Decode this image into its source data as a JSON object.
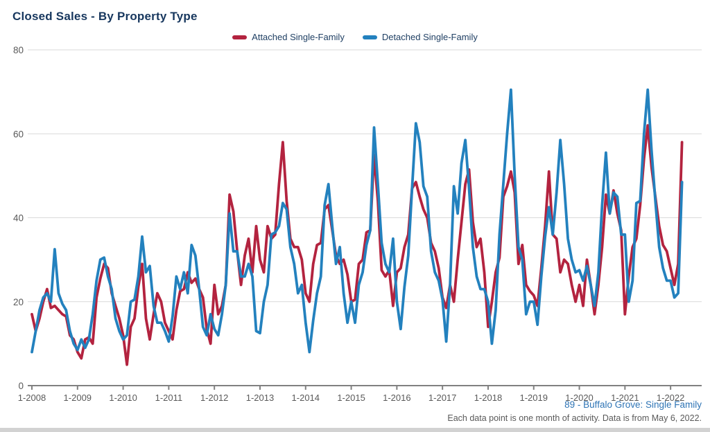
{
  "header": {
    "title": "Closed Sales - By Property Type"
  },
  "legend": {
    "items": [
      {
        "label": "Attached Single-Family",
        "color": "#B3233F"
      },
      {
        "label": "Detached Single-Family",
        "color": "#2381BE"
      }
    ]
  },
  "footer": {
    "source_label": "89 - Buffalo Grove: Single Family",
    "note": "Each data point is one month of activity. Data is from May 6, 2022."
  },
  "colors": {
    "title_text": "#17375E",
    "legend_text": "#1F3F63",
    "grid_line": "#D9D9D9",
    "axis_line": "#808080",
    "axis_label": "#595959",
    "attached_line": "#B3233F",
    "detached_line": "#2381BE",
    "source_text": "#2E74B5"
  },
  "chart_data": {
    "type": "line",
    "title": "Closed Sales - By Property Type",
    "xlabel": "",
    "ylabel": "",
    "x_start": "1-2008",
    "x_interval": "1 month",
    "x_tick_labels": [
      "1-2008",
      "1-2009",
      "1-2010",
      "1-2011",
      "1-2012",
      "1-2013",
      "1-2014",
      "1-2015",
      "1-2016",
      "1-2017",
      "1-2018",
      "1-2019",
      "1-2020",
      "1-2021",
      "1-2022"
    ],
    "y_ticks": [
      0,
      20,
      40,
      60,
      80
    ],
    "ylim": [
      0,
      80
    ],
    "grid": "horizontal",
    "legend_position": "top-center",
    "series": [
      {
        "name": "Attached Single-Family",
        "key": "attached-single-family",
        "color": "#B3233F",
        "values": [
          17,
          13,
          16,
          20,
          23,
          18.5,
          19,
          18,
          17,
          16.5,
          12,
          11,
          8,
          6.5,
          11,
          11.5,
          10,
          21,
          25.5,
          29,
          28,
          22,
          19,
          16,
          12,
          5,
          14,
          16,
          23.5,
          29,
          16,
          11,
          17,
          22,
          20,
          15,
          13,
          11,
          18,
          22.5,
          23,
          27,
          24.5,
          25.5,
          23,
          21,
          13.5,
          10,
          24,
          17,
          19,
          24,
          45.5,
          41.5,
          32,
          24,
          31,
          35,
          27,
          38,
          30,
          27,
          38,
          35,
          36,
          48,
          58,
          44,
          35,
          33,
          33,
          30,
          22,
          20,
          29,
          33.5,
          34,
          42,
          43,
          37,
          31,
          29,
          30,
          26.5,
          20,
          20.5,
          29,
          30,
          36.5,
          37,
          55,
          44,
          27.5,
          26,
          27.5,
          19,
          27,
          28,
          33,
          36,
          47,
          48.5,
          45,
          42,
          40,
          34,
          32,
          28,
          21,
          18.5,
          24,
          20,
          30,
          39,
          48,
          51.5,
          39,
          33,
          35,
          27,
          14,
          20,
          27,
          30.5,
          45,
          47.5,
          51,
          46,
          29,
          33.5,
          24,
          22.5,
          21.5,
          19,
          28,
          38,
          51,
          36,
          35,
          27,
          30,
          29,
          24,
          20,
          24,
          19,
          30,
          24,
          17,
          24,
          33,
          45.5,
          41,
          46.5,
          41,
          37,
          17,
          26,
          33,
          35,
          43,
          54,
          62,
          52,
          45,
          38,
          33.5,
          32,
          28,
          24,
          29,
          58
        ]
      },
      {
        "name": "Detached Single-Family",
        "key": "detached-single-family",
        "color": "#2381BE",
        "values": [
          8,
          13,
          18,
          21,
          22,
          20,
          32.5,
          22,
          19.5,
          18,
          13,
          10,
          8.5,
          11,
          9,
          11,
          17,
          25,
          30,
          30.5,
          26,
          23,
          16,
          13,
          11,
          12,
          20,
          20.5,
          26,
          35.5,
          27,
          28.5,
          19,
          15,
          15,
          13,
          10.5,
          16.5,
          26,
          23,
          27,
          22,
          33.5,
          31,
          23,
          14,
          12,
          17,
          13.5,
          12,
          17,
          24,
          41,
          32,
          32,
          26,
          26,
          29,
          26,
          13,
          12.5,
          20,
          24,
          36,
          36.5,
          38,
          43.5,
          42,
          33,
          29,
          22,
          24,
          15,
          8,
          15.5,
          22,
          26,
          43,
          48,
          38,
          29,
          33,
          22,
          15,
          20,
          15,
          24,
          27,
          33.5,
          37,
          61.5,
          48,
          34,
          29,
          27,
          35,
          20,
          13.5,
          23.5,
          31,
          47,
          62.5,
          58,
          47.5,
          45,
          32,
          27,
          25,
          20.5,
          10.5,
          24,
          47.5,
          41,
          53,
          58.5,
          47,
          33,
          26,
          23,
          23,
          20,
          10,
          18,
          36,
          48,
          60,
          70.5,
          50,
          33,
          30,
          17,
          20,
          20,
          14.5,
          26,
          35.5,
          42.5,
          36,
          46,
          58.5,
          48,
          35,
          30,
          27,
          27.5,
          25,
          28.5,
          24,
          19,
          27,
          43,
          55.5,
          41,
          46,
          45,
          36,
          36,
          20,
          25,
          43.5,
          44,
          60,
          70.5,
          56,
          44,
          33,
          28,
          25,
          25,
          21,
          22,
          48.5
        ]
      }
    ]
  }
}
